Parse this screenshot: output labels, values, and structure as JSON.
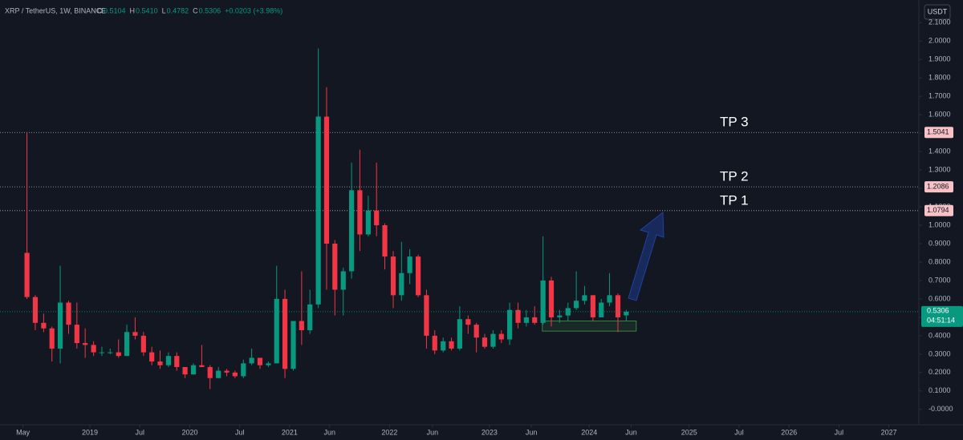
{
  "chart_data": {
    "type": "candlestick",
    "symbol": "XRP / TetherUS, 1W, BINANCE",
    "ohlc_labels": [
      "O",
      "H",
      "L",
      "C"
    ],
    "ohlc_values": [
      "0.5104",
      "0.5410",
      "0.4782",
      "0.5306"
    ],
    "change": "+0.0203 (+3.98%)",
    "currency": "USDT",
    "countdown": "04:51:14",
    "up_color": "#089981",
    "down_color": "#f23645",
    "grid": false,
    "xlim": [
      2018.1,
      2027.3
    ],
    "ylim": [
      -0.04,
      2.11
    ],
    "xticks": [
      {
        "value": 2018.33,
        "label": "May"
      },
      2019,
      {
        "value": 2019.5,
        "label": "Jul"
      },
      2020,
      {
        "value": 2020.5,
        "label": "Jul"
      },
      2021,
      {
        "value": 2021.4,
        "label": "Jun"
      },
      2022,
      {
        "value": 2022.43,
        "label": "Jun"
      },
      2023,
      {
        "value": 2023.42,
        "label": "Jun"
      },
      2024,
      {
        "value": 2024.42,
        "label": "Jun"
      },
      2025,
      {
        "value": 2025.5,
        "label": "Jul"
      },
      2026,
      {
        "value": 2026.5,
        "label": "Jul"
      },
      2027
    ],
    "yticks": [
      {
        "value": 0,
        "label": "-0.0000"
      },
      {
        "value": 0.1,
        "label": "0.1000"
      },
      {
        "value": 0.2,
        "label": "0.2000"
      },
      {
        "value": 0.3,
        "label": "0.3000"
      },
      {
        "value": 0.4,
        "label": "0.4000"
      },
      {
        "value": 0.5,
        "label": "0.5000"
      },
      {
        "value": 0.6,
        "label": "0.6000"
      },
      {
        "value": 0.7,
        "label": "0.7000"
      },
      {
        "value": 0.8,
        "label": "0.8000"
      },
      {
        "value": 0.9,
        "label": "0.9000"
      },
      {
        "value": 1.0,
        "label": "1.0000"
      },
      {
        "value": 1.1,
        "label": "1.1000"
      },
      {
        "value": 1.2,
        "label": "1.2000"
      },
      {
        "value": 1.3,
        "label": "1.3000"
      },
      {
        "value": 1.4,
        "label": "1.4000"
      },
      {
        "value": 1.5,
        "label": "1.5000"
      },
      {
        "value": 1.6,
        "label": "1.6000"
      },
      {
        "value": 1.7,
        "label": "1.7000"
      },
      {
        "value": 1.8,
        "label": "1.8000"
      },
      {
        "value": 1.9,
        "label": "1.9000"
      },
      {
        "value": 2.0,
        "label": "2.0000"
      },
      {
        "value": 2.1,
        "label": "2.1000"
      }
    ],
    "levels": [
      {
        "value": 1.5041,
        "label": "TP 3"
      },
      {
        "value": 1.2086,
        "label": "TP 2"
      },
      {
        "value": 1.0794,
        "label": "TP 1"
      }
    ],
    "last_price": 0.5306,
    "zone": {
      "x": [
        2023.53,
        2024.47
      ],
      "y": [
        0.425,
        0.48
      ]
    },
    "x": [
      2018.37,
      2018.453,
      2018.537,
      2018.62,
      2018.703,
      2018.787,
      2018.87,
      2018.953,
      2019.037,
      2019.12,
      2019.203,
      2019.287,
      2019.37,
      2019.453,
      2019.537,
      2019.62,
      2019.703,
      2019.787,
      2019.87,
      2019.953,
      2020.037,
      2020.12,
      2020.203,
      2020.287,
      2020.37,
      2020.453,
      2020.537,
      2020.62,
      2020.703,
      2020.787,
      2020.87,
      2020.953,
      2021.037,
      2021.12,
      2021.203,
      2021.287,
      2021.37,
      2021.453,
      2021.537,
      2021.62,
      2021.703,
      2021.787,
      2021.87,
      2021.953,
      2022.037,
      2022.12,
      2022.203,
      2022.287,
      2022.37,
      2022.453,
      2022.537,
      2022.62,
      2022.703,
      2022.787,
      2022.87,
      2022.953,
      2023.037,
      2023.12,
      2023.203,
      2023.287,
      2023.37,
      2023.453,
      2023.537,
      2023.62,
      2023.703,
      2023.787,
      2023.87,
      2023.953,
      2024.037,
      2024.12,
      2024.203,
      2024.287,
      2024.37
    ],
    "open": [
      0.85,
      0.61,
      0.47,
      0.44,
      0.33,
      0.58,
      0.46,
      0.36,
      0.35,
      0.31,
      0.31,
      0.31,
      0.29,
      0.42,
      0.4,
      0.31,
      0.26,
      0.24,
      0.29,
      0.23,
      0.19,
      0.24,
      0.23,
      0.17,
      0.21,
      0.2,
      0.18,
      0.25,
      0.28,
      0.24,
      0.25,
      0.6,
      0.22,
      0.48,
      0.43,
      0.57,
      1.59,
      0.9,
      0.65,
      0.75,
      1.19,
      0.95,
      1.08,
      1.0,
      0.83,
      0.62,
      0.74,
      0.83,
      0.62,
      0.4,
      0.32,
      0.37,
      0.33,
      0.49,
      0.46,
      0.39,
      0.34,
      0.41,
      0.38,
      0.54,
      0.47,
      0.5,
      0.47,
      0.7,
      0.5,
      0.51,
      0.55,
      0.59,
      0.62,
      0.5,
      0.58,
      0.62,
      0.5104
    ],
    "high": [
      1.5,
      0.62,
      0.52,
      0.45,
      0.78,
      0.59,
      0.58,
      0.44,
      0.37,
      0.34,
      0.33,
      0.38,
      0.46,
      0.5,
      0.42,
      0.34,
      0.32,
      0.31,
      0.31,
      0.23,
      0.25,
      0.35,
      0.24,
      0.23,
      0.22,
      0.21,
      0.27,
      0.33,
      0.28,
      0.26,
      0.78,
      0.65,
      0.48,
      0.75,
      0.65,
      1.96,
      1.75,
      0.92,
      0.77,
      1.34,
      1.41,
      1.16,
      1.34,
      1.01,
      0.86,
      0.91,
      0.87,
      0.84,
      0.65,
      0.43,
      0.39,
      0.39,
      0.56,
      0.51,
      0.47,
      0.41,
      0.43,
      0.43,
      0.58,
      0.58,
      0.54,
      0.56,
      0.94,
      0.72,
      0.54,
      0.58,
      0.75,
      0.67,
      0.62,
      0.6,
      0.74,
      0.63,
      0.541
    ],
    "low": [
      0.6,
      0.43,
      0.42,
      0.26,
      0.25,
      0.41,
      0.33,
      0.28,
      0.29,
      0.29,
      0.3,
      0.28,
      0.29,
      0.38,
      0.29,
      0.24,
      0.22,
      0.23,
      0.21,
      0.17,
      0.19,
      0.23,
      0.11,
      0.17,
      0.18,
      0.17,
      0.17,
      0.24,
      0.22,
      0.23,
      0.25,
      0.17,
      0.21,
      0.35,
      0.41,
      0.55,
      0.65,
      0.51,
      0.51,
      0.71,
      0.86,
      0.94,
      0.94,
      0.76,
      0.55,
      0.59,
      0.68,
      0.61,
      0.33,
      0.3,
      0.31,
      0.32,
      0.32,
      0.41,
      0.31,
      0.33,
      0.33,
      0.36,
      0.35,
      0.44,
      0.45,
      0.46,
      0.46,
      0.45,
      0.47,
      0.48,
      0.54,
      0.57,
      0.48,
      0.5,
      0.56,
      0.42,
      0.4782
    ],
    "close": [
      0.61,
      0.47,
      0.44,
      0.33,
      0.58,
      0.46,
      0.36,
      0.35,
      0.31,
      0.31,
      0.31,
      0.29,
      0.42,
      0.4,
      0.31,
      0.26,
      0.24,
      0.29,
      0.23,
      0.19,
      0.24,
      0.23,
      0.17,
      0.21,
      0.2,
      0.18,
      0.25,
      0.28,
      0.24,
      0.25,
      0.6,
      0.22,
      0.48,
      0.43,
      0.57,
      1.59,
      0.9,
      0.65,
      0.75,
      1.19,
      0.95,
      1.08,
      1.0,
      0.83,
      0.62,
      0.74,
      0.83,
      0.62,
      0.4,
      0.32,
      0.37,
      0.33,
      0.49,
      0.46,
      0.39,
      0.34,
      0.41,
      0.38,
      0.54,
      0.47,
      0.5,
      0.47,
      0.7,
      0.5,
      0.51,
      0.55,
      0.59,
      0.62,
      0.5,
      0.58,
      0.62,
      0.5,
      0.5306
    ]
  }
}
